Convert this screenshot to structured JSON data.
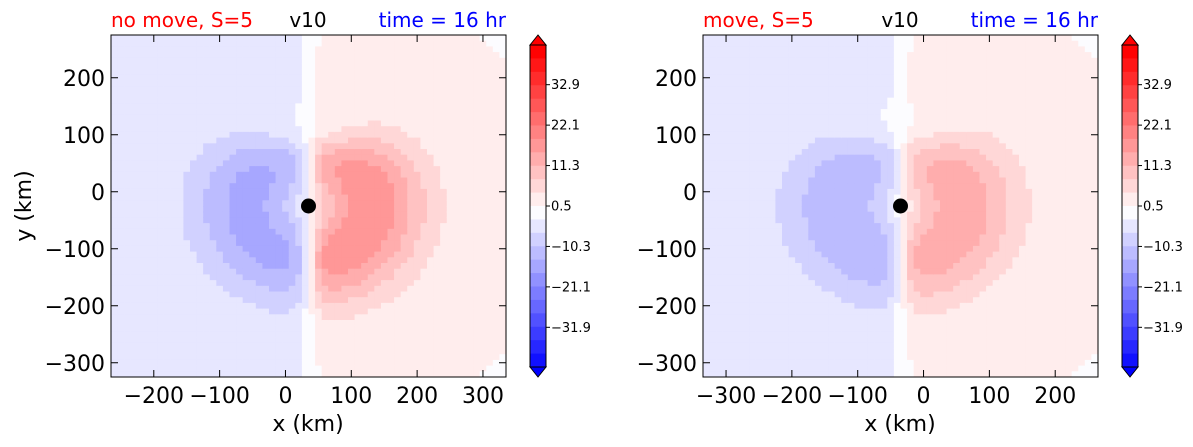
{
  "colors": {
    "title_left": "#ff0000",
    "title_center": "#000000",
    "title_right": "#0000ff",
    "storm_center": "#000000"
  },
  "colorbar": {
    "tick_labels": [
      "32.9",
      "22.1",
      "11.3",
      "0.5",
      "−10.3",
      "−21.1",
      "−31.9"
    ],
    "tick_values": [
      32.9,
      22.1,
      11.3,
      0.5,
      -10.3,
      -21.1,
      -31.9
    ],
    "vmin": -42.5,
    "vmax": 43.5,
    "colormap": "bwr",
    "extend": "both"
  },
  "chart_data": [
    {
      "type": "contourf",
      "title_left": "no move, S=5",
      "title_center": "v10",
      "title_right": "time = 16 hr",
      "xlabel": "x (km)",
      "ylabel": "y (km)",
      "xlim": [
        -265,
        335
      ],
      "ylim": [
        -325,
        275
      ],
      "xticks": [
        -200,
        -100,
        0,
        100,
        200,
        300
      ],
      "xtick_labels": [
        "−200",
        "−100",
        "0",
        "100",
        "200",
        "300"
      ],
      "yticks": [
        200,
        100,
        0,
        -100,
        -200,
        -300
      ],
      "ytick_labels": [
        "200",
        "100",
        "0",
        "−100",
        "−200",
        "−300"
      ],
      "storm_center": {
        "x": 35,
        "y": -25
      },
      "field": {
        "peak_positive": 19,
        "peak_negative": -14,
        "background_positive": 2.5,
        "background_negative": -3
      }
    },
    {
      "type": "contourf",
      "title_left": "move, S=5",
      "title_center": "v10",
      "title_right": "time = 16 hr",
      "xlabel": "x (km)",
      "ylabel": "",
      "xlim": [
        -335,
        265
      ],
      "ylim": [
        -325,
        275
      ],
      "xticks": [
        -300,
        -200,
        -100,
        0,
        100,
        200
      ],
      "xtick_labels": [
        "−300",
        "−200",
        "−100",
        "0",
        "100",
        "200"
      ],
      "yticks": [
        200,
        100,
        0,
        -100,
        -200,
        -300
      ],
      "ytick_labels": [
        "200",
        "100",
        "0",
        "−100",
        "−200",
        "−300"
      ],
      "storm_center": {
        "x": -35,
        "y": -25
      },
      "field": {
        "peak_positive": 15,
        "peak_negative": -12,
        "background_positive": 2.5,
        "background_negative": -3
      }
    }
  ]
}
